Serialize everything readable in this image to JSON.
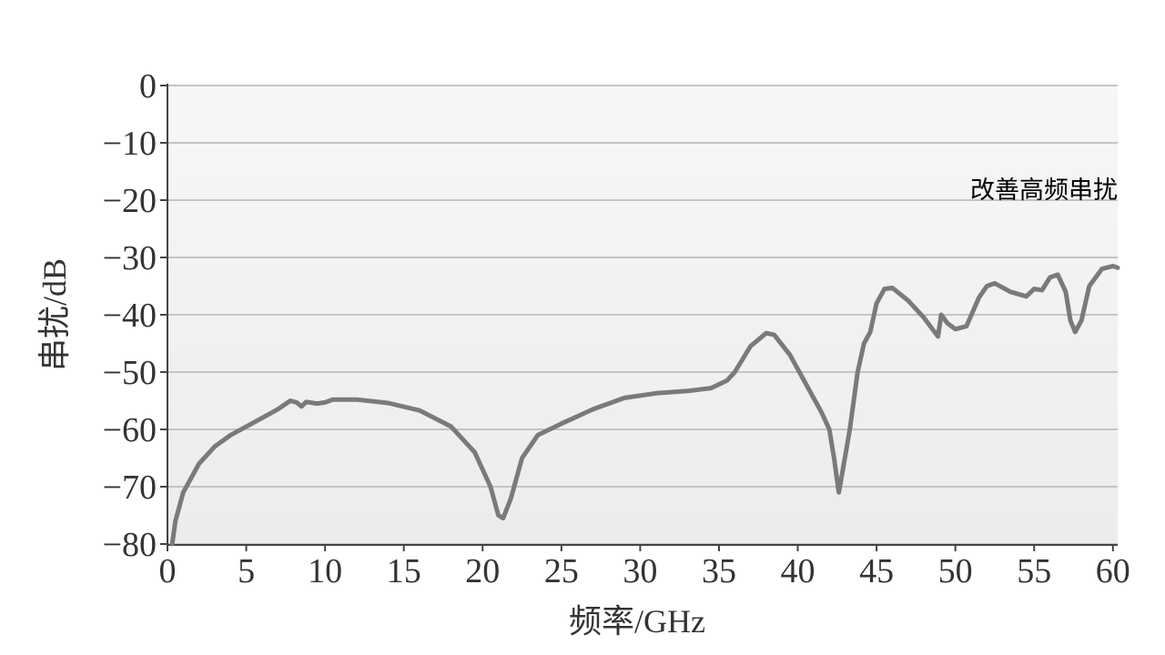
{
  "chart_data": {
    "type": "line",
    "xlabel": "频率/GHz",
    "ylabel": "串扰/dB",
    "annotation": "改善高频串扰",
    "x": [
      0.3,
      0.5,
      1,
      2,
      3,
      4,
      5,
      6,
      7,
      7.8,
      8.2,
      8.5,
      8.8,
      9.5,
      10,
      10.5,
      12,
      14,
      16,
      18,
      19.5,
      20.5,
      21,
      21.3,
      21.8,
      22.5,
      23.5,
      25,
      27,
      29,
      31,
      33,
      34.5,
      35.5,
      36,
      37,
      38,
      38.5,
      39.5,
      40.5,
      41.5,
      42,
      42.3,
      42.6,
      42.8,
      43.3,
      43.8,
      44.2,
      44.6,
      45,
      45.5,
      46,
      47,
      48,
      48.9,
      49.1,
      49.5,
      50,
      50.7,
      51.5,
      52,
      52.5,
      53.5,
      54.5,
      55,
      55.5,
      56,
      56.5,
      57,
      57.3,
      57.6,
      58,
      58.5,
      59.3,
      60,
      60.3
    ],
    "values": [
      -80,
      -76,
      -71,
      -66,
      -63,
      -61,
      -59.5,
      -58,
      -56.5,
      -55,
      -55.3,
      -56,
      -55.2,
      -55.5,
      -55.3,
      -54.8,
      -54.8,
      -55.4,
      -56.7,
      -59.5,
      -64,
      -70,
      -75,
      -75.5,
      -72,
      -65,
      -61,
      -59,
      -56.5,
      -54.5,
      -53.7,
      -53.3,
      -52.8,
      -51.5,
      -50,
      -45.5,
      -43.2,
      -43.5,
      -47,
      -52,
      -57,
      -60,
      -65,
      -71,
      -68,
      -60,
      -50,
      -45,
      -43,
      -38,
      -35.5,
      -35.3,
      -37.5,
      -40.5,
      -43.8,
      -40,
      -41.5,
      -42.5,
      -42,
      -37,
      -35,
      -34.5,
      -36,
      -36.8,
      -35.5,
      -35.7,
      -33.5,
      -33,
      -36,
      -41,
      -43,
      -41,
      -35,
      -32,
      -31.5,
      -31.8
    ],
    "color": "#7a7a7a",
    "xlim": [
      0,
      60.3
    ],
    "ylim": [
      -80,
      0
    ],
    "xticks": [
      0,
      5,
      10,
      15,
      20,
      25,
      30,
      35,
      40,
      45,
      50,
      55,
      60
    ],
    "yticks": [
      {
        "value": -80,
        "label": "−80"
      },
      {
        "value": -70,
        "label": "−70"
      },
      {
        "value": -60,
        "label": "−60"
      },
      {
        "value": -50,
        "label": "−50"
      },
      {
        "value": -40,
        "label": "−40"
      },
      {
        "value": -30,
        "label": "−30"
      },
      {
        "value": -20,
        "label": "−20"
      },
      {
        "value": -10,
        "label": "−10"
      },
      0
    ],
    "grid": true
  }
}
